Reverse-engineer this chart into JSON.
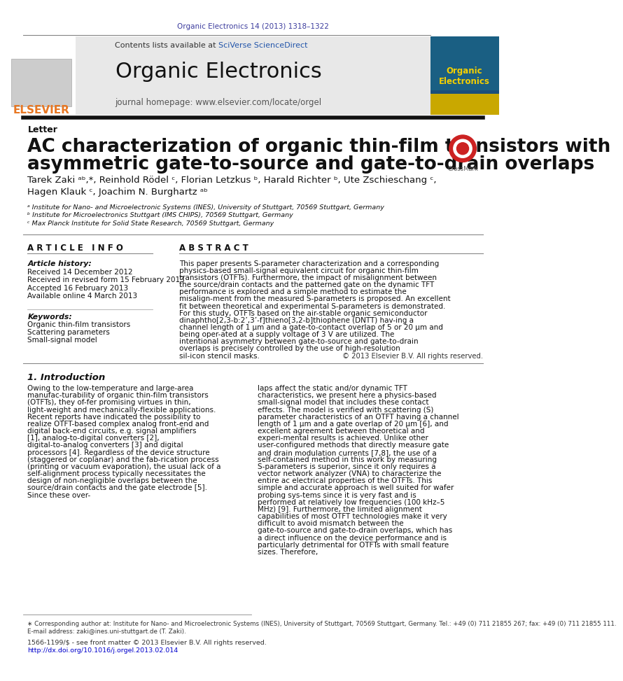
{
  "bg_color": "#ffffff",
  "top_journal_ref": "Organic Electronics 14 (2013) 1318–1322",
  "top_journal_ref_color": "#3d3d9e",
  "header_bg": "#e8e8e8",
  "header_contents_pre": "Contents lists available at ",
  "header_contents_link": "SciVerse ScienceDirect",
  "header_journal_title": "Organic Electronics",
  "header_homepage": "journal homepage: www.elsevier.com/locate/orgel",
  "elsevier_color": "#e87722",
  "section_label": "Letter",
  "article_title_line1": "AC characterization of organic thin-film transistors with",
  "article_title_line2": "asymmetric gate-to-source and gate-to-drain overlaps",
  "authors": "Tarek Zaki ᵃᵇ,*, Reinhold Rödel ᶜ, Florian Letzkus ᵇ, Harald Richter ᵇ, Ute Zschieschang ᶜ,",
  "authors2": "Hagen Klauk ᶜ, Joachim N. Burghartz ᵃᵇ",
  "affil_a": "ᵃ Institute for Nano- and Microelectronic Systems (INES), University of Stuttgart, 70569 Stuttgart, Germany",
  "affil_b": "ᵇ Institute for Microelectronics Stuttgart (IMS CHIPS), 70569 Stuttgart, Germany",
  "affil_c": "ᶜ Max Planck Institute for Solid State Research, 70569 Stuttgart, Germany",
  "article_info_title": "A R T I C L E   I N F O",
  "abstract_title": "A B S T R A C T",
  "article_history_label": "Article history:",
  "received1": "Received 14 December 2012",
  "received2": "Received in revised form 15 February 2013",
  "accepted": "Accepted 16 February 2013",
  "available": "Available online 4 March 2013",
  "keywords_label": "Keywords:",
  "kw1": "Organic thin-film transistors",
  "kw2": "Scattering parameters",
  "kw3": "Small-signal model",
  "abstract_text": "This paper presents S-parameter characterization and a corresponding physics-based small-signal equivalent circuit for organic thin-film transistors (OTFTs). Furthermore, the impact of misalignment between the source/drain contacts and the patterned gate on the dynamic TFT performance is explored and a simple method to estimate the misalign-ment from the measured S-parameters is proposed. An excellent fit between theoretical and experimental S-parameters is demonstrated. For this study, OTFTs based on the air-stable organic semiconductor dinaphtho[2,3-b:2’,3’-f]thieno[3,2-b]thiophene (DNTT) hav-ing a channel length of 1 μm and a gate-to-contact overlap of 5 or 20 μm and being oper-ated at a supply voltage of 3 V are utilized. The intentional asymmetry between gate-to-source and gate-to-drain overlaps is precisely controlled by the use of high-resolution sil-icon stencil masks.",
  "copyright_text": "© 2013 Elsevier B.V. All rights reserved.",
  "intro_title": "1. Introduction",
  "intro_col1": "Owing to the low-temperature and large-area manufac-turability of organic thin-film transistors (OTFTs), they of-fer promising virtues in thin, light-weight and mechanically-flexible applications. Recent reports have indicated the possibility to realize OTFT-based complex analog front-end and digital back-end circuits, e.g. signal amplifiers [1], analog-to-digital converters [2], digital-to-analog converters [3] and digital processors [4]. Regardless of the device structure (staggered or coplanar) and the fab-rication process (printing or vacuum evaporation), the usual lack of a self-alignment process typically necessitates the design of non-negligible overlaps between the source/drain contacts and the gate electrode [5]. Since these over-",
  "intro_col2": "laps affect the static and/or dynamic TFT characteristics, we present here a physics-based small-signal model that includes these contact effects. The model is verified with scattering (S) parameter characteristics of an OTFT having a channel length of 1 μm and a gate overlap of 20 μm [6], and excellent agreement between theoretical and experi-mental results is achieved. Unlike other user-configured methods that directly measure gate and drain modulation currents [7,8], the use of a self-contained method in this work by measuring S-parameters is superior, since it only requires a vector network analyzer (VNA) to characterize the entire ac electrical properties of the OTFTs. This simple and accurate approach is well suited for wafer probing sys-tems since it is very fast and is performed at relatively low frequencies (100 kHz–5 MHz) [9]. Furthermore, the limited alignment capabilities of most OTFT technologies make it very difficult to avoid mismatch between the gate-to-source and gate-to-drain overlaps, which has a direct influence on the device performance and is particularly detrimental for OTFTs with small feature sizes. Therefore,",
  "footer_text1": "∗ Corresponding author at: Institute for Nano- and Microelectronic Systems (INES), University of Stuttgart, 70569 Stuttgart, Germany. Tel.: +49 (0) 711 21855 267; fax: +49 (0) 711 21855 111.",
  "footer_text2": "E-mail address: zaki@ines.uni-stuttgart.de (T. Zaki).",
  "footer_issn": "1566-1199/$ - see front matter © 2013 Elsevier B.V. All rights reserved.",
  "footer_doi": "http://dx.doi.org/10.1016/j.orgel.2013.02.014",
  "doi_color": "#0000cc",
  "link_color": "#2255aa"
}
